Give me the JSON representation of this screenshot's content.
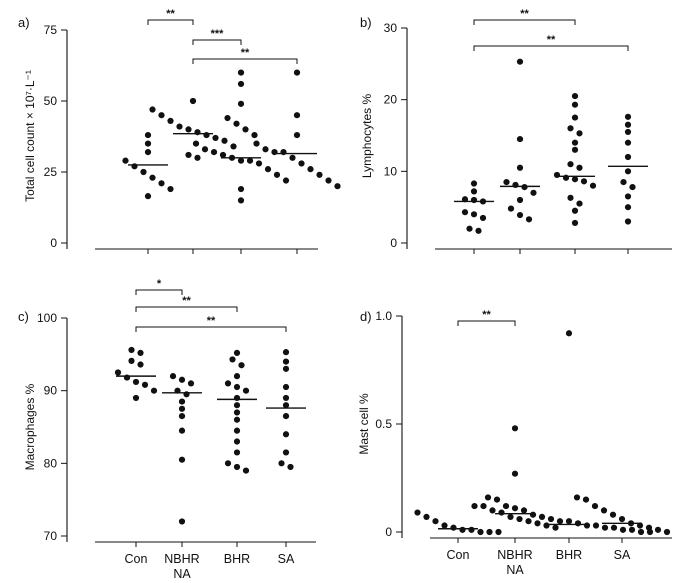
{
  "categories": [
    "Con",
    "NBHR",
    "BHR",
    "SA"
  ],
  "category_sublabels": [
    "",
    "NA",
    "",
    ""
  ],
  "chart_data": [
    {
      "panel": "a)",
      "type": "scatter",
      "ylabel": "Total cell count × 10⁷·L⁻¹",
      "ylim": [
        0,
        75
      ],
      "yticks": [
        0,
        25,
        50,
        75
      ],
      "series": [
        {
          "category": "Con",
          "values": [
            38,
            35,
            32,
            29,
            27,
            25,
            23,
            21,
            19,
            16.5
          ],
          "median": 27.5
        },
        {
          "category": "NBHR",
          "values": [
            50,
            47,
            45,
            43,
            41,
            40,
            39,
            38,
            37,
            36,
            34,
            31,
            30
          ],
          "median": 38.5
        },
        {
          "category": "BHR",
          "values": [
            60,
            56,
            49,
            44,
            42,
            40,
            38,
            35,
            33,
            32,
            31,
            30,
            29,
            29,
            28,
            26,
            24,
            22,
            19,
            15
          ],
          "median": 30
        },
        {
          "category": "SA",
          "values": [
            60,
            45,
            38,
            35,
            33,
            32,
            32,
            30,
            28,
            26,
            24,
            22,
            20
          ],
          "median": 31.5
        }
      ],
      "brackets": [
        {
          "from": "Con",
          "to": "NBHR",
          "label": "**"
        },
        {
          "from": "NBHR",
          "to": "BHR",
          "label": "***"
        },
        {
          "from": "NBHR",
          "to": "SA",
          "label": "**"
        }
      ]
    },
    {
      "panel": "b)",
      "type": "scatter",
      "ylabel": "Lymphocytes %",
      "ylim": [
        0,
        30
      ],
      "yticks": [
        0,
        10,
        20,
        30
      ],
      "series": [
        {
          "category": "Con",
          "values": [
            8.3,
            7.2,
            6.1,
            6.0,
            5.8,
            4.3,
            4.0,
            3.5,
            2.0,
            1.7
          ],
          "median": 5.8
        },
        {
          "category": "NBHR",
          "values": [
            25.3,
            14.5,
            10.5,
            8.5,
            8.1,
            7.8,
            7.0,
            6.0,
            4.8,
            3.9,
            3.3
          ],
          "median": 7.9
        },
        {
          "category": "BHR",
          "values": [
            20.5,
            19.3,
            17.5,
            16.0,
            15.3,
            14.0,
            13.0,
            11.0,
            10.5,
            9.5,
            9.1,
            8.9,
            8.6,
            8.0,
            6.3,
            5.5,
            4.5,
            2.8
          ],
          "median": 9.3
        },
        {
          "category": "SA",
          "values": [
            17.6,
            16.5,
            15.5,
            14.0,
            12.0,
            10.0,
            8.5,
            7.8,
            6.5,
            5.0,
            3.0
          ],
          "median": 10.7
        }
      ],
      "brackets": [
        {
          "from": "Con",
          "to": "BHR",
          "label": "**"
        },
        {
          "from": "Con",
          "to": "SA",
          "label": "**"
        }
      ]
    },
    {
      "panel": "c)",
      "type": "scatter",
      "ylabel": "Macrophages %",
      "ylim": [
        70,
        100
      ],
      "yticks": [
        70,
        80,
        90,
        100
      ],
      "series": [
        {
          "category": "Con",
          "values": [
            95.6,
            95.2,
            94.1,
            93.6,
            92.5,
            91.8,
            91.2,
            90.8,
            90.0,
            89.0
          ],
          "median": 92.0
        },
        {
          "category": "NBHR",
          "values": [
            92.0,
            91.5,
            91.0,
            90.0,
            89.5,
            88.5,
            87.5,
            86.5,
            84.5,
            80.5,
            72.0
          ],
          "median": 89.7
        },
        {
          "category": "BHR",
          "values": [
            95.2,
            94.3,
            93.5,
            92.0,
            91.0,
            90.5,
            90.0,
            89.0,
            88.0,
            87.0,
            86.0,
            84.5,
            83.0,
            81.5,
            80.0,
            79.5,
            79.0
          ],
          "median": 88.8
        },
        {
          "category": "SA",
          "values": [
            95.3,
            94.0,
            93.0,
            90.5,
            89.0,
            88.0,
            86.5,
            84.0,
            81.5,
            80.0,
            79.5
          ],
          "median": 87.6
        }
      ],
      "brackets": [
        {
          "from": "Con",
          "to": "NBHR",
          "label": "*"
        },
        {
          "from": "Con",
          "to": "BHR",
          "label": "**"
        },
        {
          "from": "Con",
          "to": "SA",
          "label": "**"
        }
      ]
    },
    {
      "panel": "d)",
      "type": "scatter",
      "ylabel": "Mast cell %",
      "ylim": [
        0,
        1.0
      ],
      "yticks": [
        0,
        0.5,
        1.0
      ],
      "ytick_labels": [
        "0",
        "0.5",
        "1.0"
      ],
      "series": [
        {
          "category": "Con",
          "values": [
            0.09,
            0.07,
            0.05,
            0.03,
            0.02,
            0.01,
            0.01,
            0.0,
            0.0,
            0.0
          ],
          "median": 0.015
        },
        {
          "category": "NBHR",
          "values": [
            0.48,
            0.27,
            0.12,
            0.12,
            0.1,
            0.09,
            0.07,
            0.06,
            0.05,
            0.04,
            0.03,
            0.02
          ],
          "median": 0.085
        },
        {
          "category": "BHR",
          "values": [
            0.92,
            0.16,
            0.15,
            0.12,
            0.11,
            0.1,
            0.08,
            0.07,
            0.06,
            0.05,
            0.05,
            0.04,
            0.03,
            0.03,
            0.02,
            0.02,
            0.01,
            0.01,
            0.0,
            0.0
          ],
          "median": 0.035
        },
        {
          "category": "SA",
          "values": [
            0.16,
            0.15,
            0.12,
            0.1,
            0.08,
            0.06,
            0.04,
            0.03,
            0.02,
            0.01,
            0.0
          ],
          "median": 0.04
        }
      ],
      "brackets": [
        {
          "from": "Con",
          "to": "NBHR",
          "label": "**"
        }
      ]
    }
  ]
}
